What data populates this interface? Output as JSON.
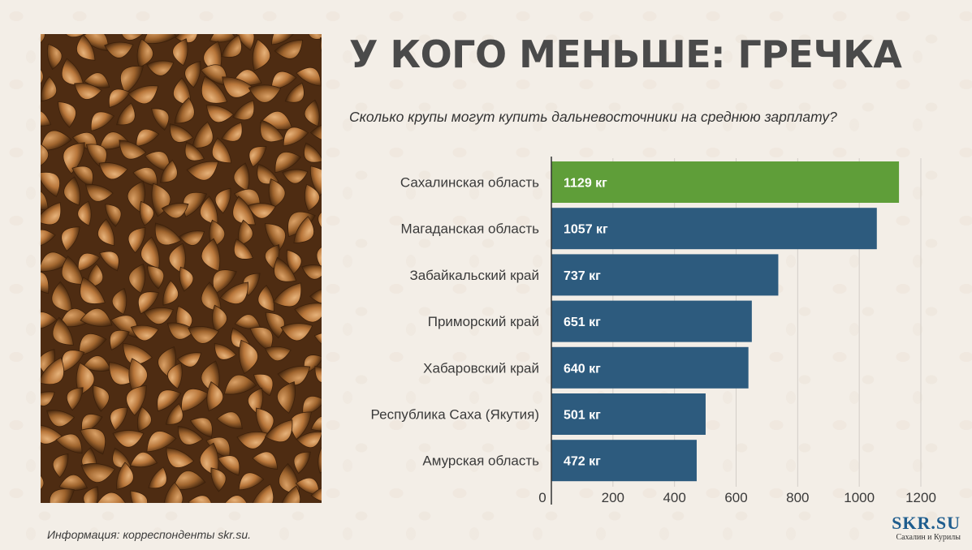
{
  "title": "У КОГО МЕНЬШЕ: ГРЕЧКА",
  "subtitle": "Сколько крупы могут купить дальневосточники на среднюю зарплату?",
  "source": "Информация: корреспонденты skr.su.",
  "logo": {
    "main": "SKR.SU",
    "sub": "Сахалин и Курилы"
  },
  "photo": {
    "icon": "buckwheat-grains-photo"
  },
  "colors": {
    "highlight": "#5f9e39",
    "bar": "#2d5b7e",
    "title": "#4a4a4a"
  },
  "chart_data": {
    "type": "bar",
    "orientation": "horizontal",
    "categories": [
      "Сахалинская область",
      "Магаданская область",
      "Забайкальский край",
      "Приморский край",
      "Хабаровский край",
      "Республика Саха (Якутия)",
      "Амурская область"
    ],
    "values": [
      1129,
      1057,
      737,
      651,
      640,
      501,
      472
    ],
    "data_labels": [
      "1129 кг",
      "1057 кг",
      "737 кг",
      "651 кг",
      "640 кг",
      "501 кг",
      "472 кг"
    ],
    "xlim": [
      0,
      1200
    ],
    "ticks": [
      0,
      200,
      400,
      600,
      800,
      1000,
      1200
    ],
    "tick_labels": [
      "0",
      "200",
      "400",
      "600",
      "800",
      "1000",
      "1200"
    ],
    "highlight_index": 0,
    "grid": true
  }
}
